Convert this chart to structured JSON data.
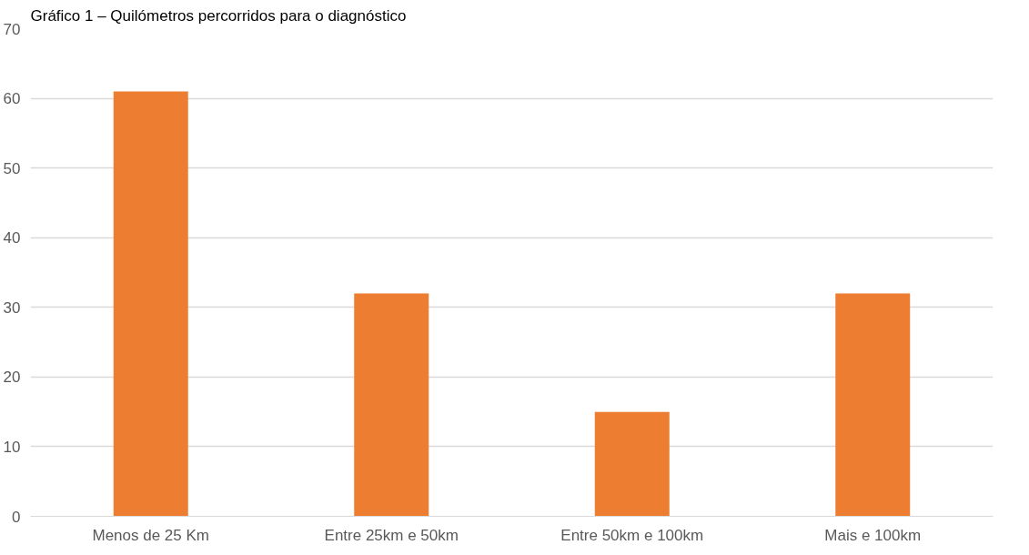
{
  "chart_data": {
    "type": "bar",
    "title": "Gráfico 1 – Quilómetros percorridos para o diagnóstico",
    "categories": [
      "Menos de 25 Km",
      "Entre 25km e 50km",
      "Entre 50km e 100km",
      "Mais e 100km"
    ],
    "values": [
      61,
      32,
      15,
      32
    ],
    "color": "#ed7d31",
    "ylim": [
      0,
      70
    ],
    "yticks": [
      0,
      10,
      20,
      30,
      40,
      50,
      60,
      70
    ],
    "grid": "y"
  }
}
